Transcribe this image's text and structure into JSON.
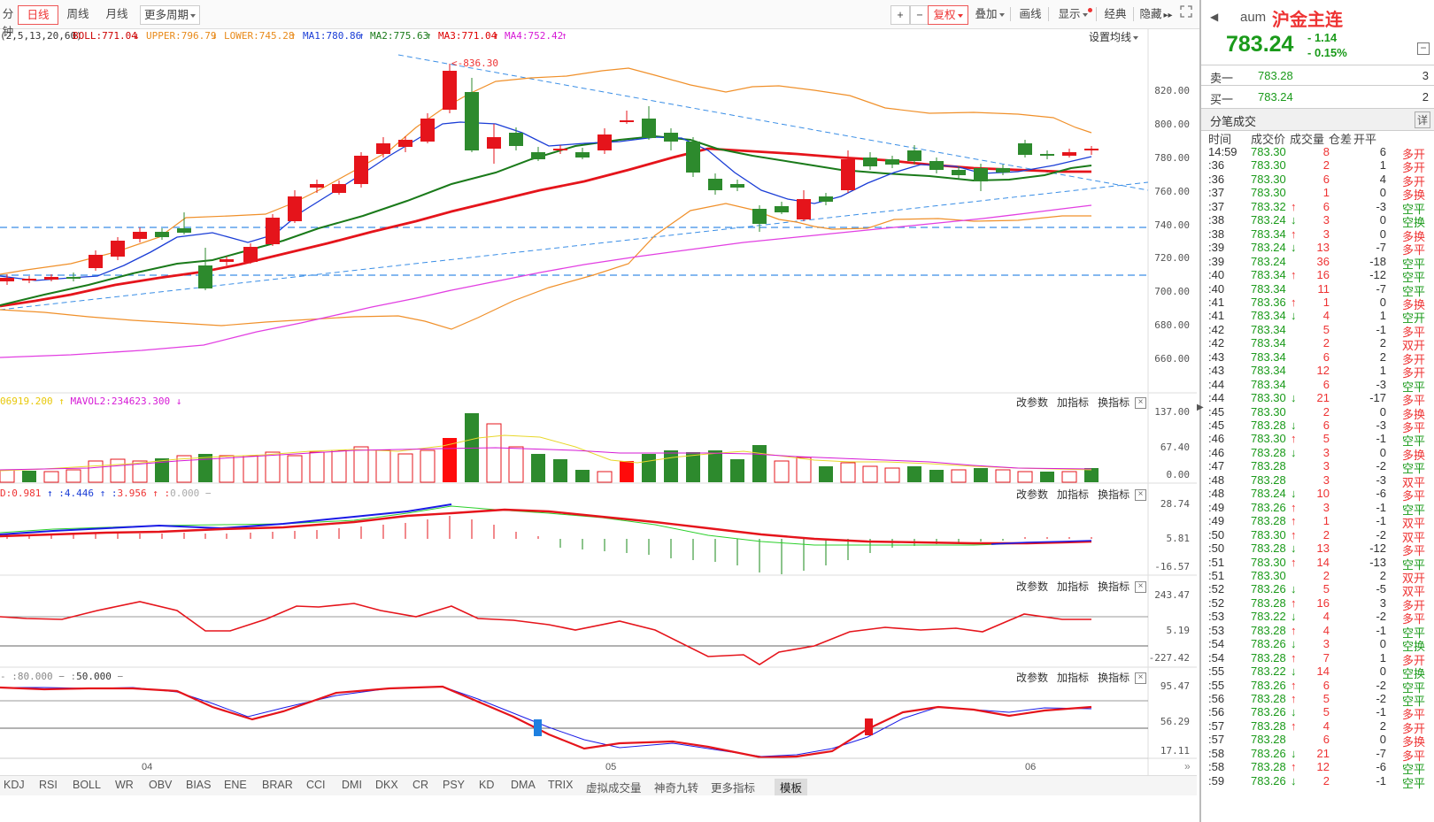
{
  "toolbar": {
    "items": [
      "分钟",
      "日线",
      "周线",
      "月线",
      "更多周期"
    ],
    "active": "日线",
    "right": [
      "+",
      "−",
      "复权",
      "叠加",
      "画线",
      "显示",
      "经典",
      "隐藏"
    ],
    "fuquan": "复权"
  },
  "legend": {
    "params": "(2,5,13,20,60)",
    "boll": "BOLL:771.04",
    "upper": "UPPER:796.79",
    "lower": "LOWER:745.28",
    "ma1": "MA1:780.86",
    "ma2": "MA2:775.63",
    "ma3": "MA3:771.04",
    "ma4": "MA4:752.42",
    "setting": "设置均线"
  },
  "price_panel": {
    "high_mark": "836.30",
    "y_labels": [
      "820.00",
      "800.00",
      "780.00",
      "760.00",
      "740.00",
      "720.00",
      "700.00",
      "680.00",
      "660.00"
    ]
  },
  "vol_panel": {
    "legend1": "06919.200",
    "legend2": "MAVOL2:234623.300",
    "y_labels": [
      "137.00",
      "67.40",
      "0.00"
    ]
  },
  "macd_panel": {
    "legend": [
      "D:0.981",
      "4.446",
      "3.956",
      "0.000"
    ],
    "y_labels": [
      "28.74",
      "5.81",
      "-16.57"
    ]
  },
  "ind3_panel": {
    "y_labels": [
      "243.47",
      "5.19",
      "-227.42"
    ]
  },
  "ind4_panel": {
    "legend": [
      "80.000",
      "50.000"
    ],
    "y_labels": [
      "95.47",
      "56.29",
      "17.11"
    ]
  },
  "panel_ctrl": {
    "a": "改参数",
    "b": "加指标",
    "c": "换指标"
  },
  "x_axis": [
    "04",
    "05",
    "06"
  ],
  "tabs": [
    "KDJ",
    "RSI",
    "BOLL",
    "WR",
    "OBV",
    "BIAS",
    "ENE",
    "BRAR",
    "CCI",
    "DMI",
    "DKX",
    "CR",
    "PSY",
    "KD",
    "DMA",
    "TRIX",
    "虚拟成交量",
    "神奇九转",
    "更多指标",
    "模板"
  ],
  "active_tab": "模板",
  "quote": {
    "code": "aum",
    "name": "沪金主连",
    "price": "783.24",
    "change": "- 1.14",
    "pct": "- 0.15%",
    "sell_label": "卖一",
    "sell_price": "783.28",
    "sell_vol": "3",
    "buy_label": "买一",
    "buy_price": "783.24",
    "buy_vol": "2",
    "ticks_title": "分笔成交",
    "detail": "详",
    "headers": [
      "时间",
      "成交价",
      "成交量",
      "仓差",
      "开平"
    ]
  },
  "ticks": [
    [
      "14:59",
      "783.30",
      "",
      "8",
      "6",
      "多开"
    ],
    [
      ":36",
      "783.30",
      "",
      "2",
      "1",
      "多开"
    ],
    [
      ":36",
      "783.30",
      "",
      "6",
      "4",
      "多开"
    ],
    [
      ":37",
      "783.30",
      "",
      "1",
      "0",
      "多换"
    ],
    [
      ":37",
      "783.32",
      "up",
      "6",
      "-3",
      "空平"
    ],
    [
      ":38",
      "783.24",
      "down",
      "3",
      "0",
      "空换"
    ],
    [
      ":38",
      "783.34",
      "up",
      "3",
      "0",
      "多换"
    ],
    [
      ":39",
      "783.24",
      "down",
      "13",
      "-7",
      "多平"
    ],
    [
      ":39",
      "783.24",
      "",
      "36",
      "-18",
      "空平"
    ],
    [
      ":40",
      "783.34",
      "up",
      "16",
      "-12",
      "空平"
    ],
    [
      ":40",
      "783.34",
      "",
      "11",
      "-7",
      "空平"
    ],
    [
      ":41",
      "783.36",
      "up",
      "1",
      "0",
      "多换"
    ],
    [
      ":41",
      "783.34",
      "down",
      "4",
      "1",
      "空开"
    ],
    [
      ":42",
      "783.34",
      "",
      "5",
      "-1",
      "多平"
    ],
    [
      ":42",
      "783.34",
      "",
      "2",
      "2",
      "双开"
    ],
    [
      ":43",
      "783.34",
      "",
      "6",
      "2",
      "多开"
    ],
    [
      ":43",
      "783.34",
      "",
      "12",
      "1",
      "多开"
    ],
    [
      ":44",
      "783.34",
      "",
      "6",
      "-3",
      "空平"
    ],
    [
      ":44",
      "783.30",
      "down",
      "21",
      "-17",
      "多平"
    ],
    [
      ":45",
      "783.30",
      "",
      "2",
      "0",
      "多换"
    ],
    [
      ":45",
      "783.28",
      "down",
      "6",
      "-3",
      "多平"
    ],
    [
      ":46",
      "783.30",
      "up",
      "5",
      "-1",
      "空平"
    ],
    [
      ":46",
      "783.28",
      "down",
      "3",
      "0",
      "多换"
    ],
    [
      ":47",
      "783.28",
      "",
      "3",
      "-2",
      "空平"
    ],
    [
      ":48",
      "783.28",
      "",
      "3",
      "-3",
      "双平"
    ],
    [
      ":48",
      "783.24",
      "down",
      "10",
      "-6",
      "多平"
    ],
    [
      ":49",
      "783.26",
      "up",
      "3",
      "-1",
      "空平"
    ],
    [
      ":49",
      "783.28",
      "up",
      "1",
      "-1",
      "双平"
    ],
    [
      ":50",
      "783.30",
      "up",
      "2",
      "-2",
      "双平"
    ],
    [
      ":50",
      "783.28",
      "down",
      "13",
      "-12",
      "多平"
    ],
    [
      ":51",
      "783.30",
      "up",
      "14",
      "-13",
      "空平"
    ],
    [
      ":51",
      "783.30",
      "",
      "2",
      "2",
      "双开"
    ],
    [
      ":52",
      "783.26",
      "down",
      "5",
      "-5",
      "双平"
    ],
    [
      ":52",
      "783.28",
      "up",
      "16",
      "3",
      "多开"
    ],
    [
      ":53",
      "783.22",
      "down",
      "4",
      "-2",
      "多平"
    ],
    [
      ":53",
      "783.28",
      "up",
      "4",
      "-1",
      "空平"
    ],
    [
      ":54",
      "783.26",
      "down",
      "3",
      "0",
      "空换"
    ],
    [
      ":54",
      "783.28",
      "up",
      "7",
      "1",
      "多开"
    ],
    [
      ":55",
      "783.22",
      "down",
      "14",
      "0",
      "空换"
    ],
    [
      ":55",
      "783.26",
      "up",
      "6",
      "-2",
      "空平"
    ],
    [
      ":56",
      "783.28",
      "up",
      "5",
      "-2",
      "空平"
    ],
    [
      ":56",
      "783.26",
      "down",
      "5",
      "-1",
      "多平"
    ],
    [
      ":57",
      "783.28",
      "up",
      "4",
      "2",
      "多开"
    ],
    [
      ":57",
      "783.28",
      "",
      "6",
      "0",
      "多换"
    ],
    [
      ":58",
      "783.26",
      "down",
      "21",
      "-7",
      "多平"
    ],
    [
      ":58",
      "783.28",
      "up",
      "12",
      "-6",
      "空平"
    ],
    [
      ":59",
      "783.26",
      "down",
      "2",
      "-1",
      "空平"
    ]
  ]
}
